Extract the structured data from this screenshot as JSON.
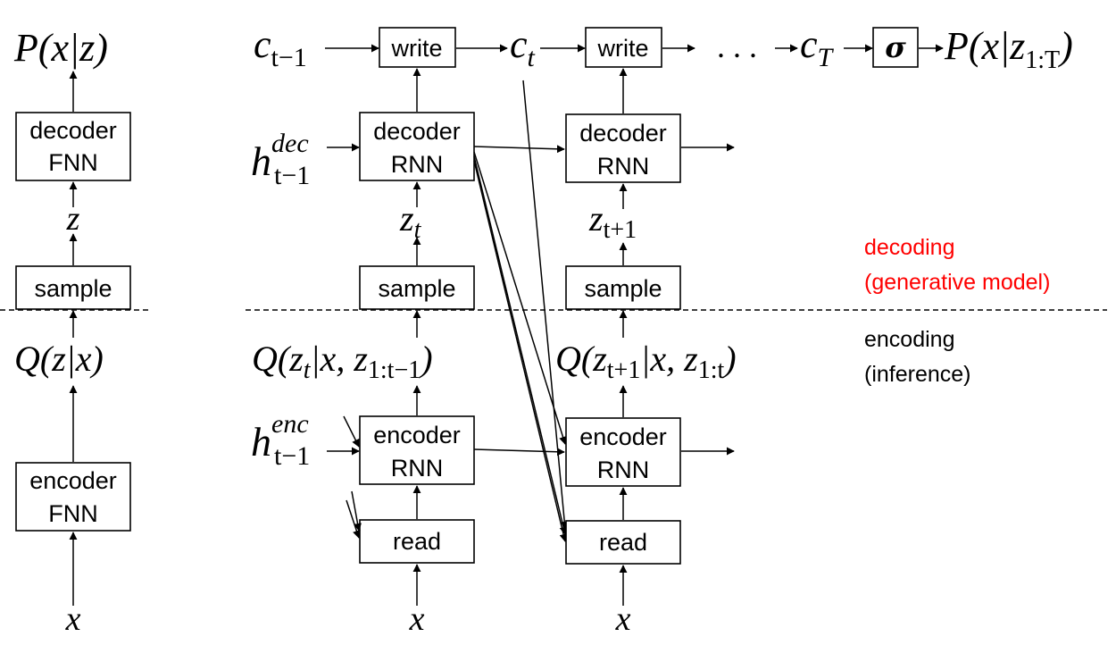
{
  "colors": {
    "decoding_label": "#ff0000",
    "encoding_label": "#000000"
  },
  "left_model": {
    "top_output": "P(x|z)",
    "decoder_box": [
      "decoder",
      "FNN"
    ],
    "latent": "z",
    "sample_box": "sample",
    "posterior": "Q(z|x)",
    "encoder_box": [
      "encoder",
      "FNN"
    ],
    "input": "x"
  },
  "canvas_row": {
    "c_prev": "c",
    "c_prev_sub": "t−1",
    "write_1": "write",
    "c_t": "c",
    "c_t_sub": "t",
    "write_2": "write",
    "ellipsis": ". . .",
    "c_T": "c",
    "c_T_sub": "T",
    "sigma": "σ",
    "output": "P(x|z",
    "output_sub": "1:T",
    "output_close": ")"
  },
  "step_t": {
    "h_dec_prev": "h",
    "h_dec_sup": "dec",
    "h_dec_sub": "t−1",
    "decoder_box": [
      "decoder",
      "RNN"
    ],
    "latent": "z",
    "latent_sub": "t",
    "sample_box": "sample",
    "posterior_pre": "Q(z",
    "posterior_sub1": "t",
    "posterior_mid": "|x, z",
    "posterior_sub2": "1:t−1",
    "posterior_post": ")",
    "h_enc_prev": "h",
    "h_enc_sup": "enc",
    "h_enc_sub": "t−1",
    "encoder_box": [
      "encoder",
      "RNN"
    ],
    "read_box": "read",
    "input": "x"
  },
  "step_t1": {
    "decoder_box": [
      "decoder",
      "RNN"
    ],
    "latent": "z",
    "latent_sub": "t+1",
    "sample_box": "sample",
    "posterior_pre": "Q(z",
    "posterior_sub1": "t+1",
    "posterior_mid": "|x, z",
    "posterior_sub2": "1:t",
    "posterior_post": ")",
    "encoder_box": [
      "encoder",
      "RNN"
    ],
    "read_box": "read",
    "input": "x"
  },
  "annotations": {
    "decoding": [
      "decoding",
      "(generative model)"
    ],
    "encoding": [
      "encoding",
      "(inference)"
    ]
  }
}
